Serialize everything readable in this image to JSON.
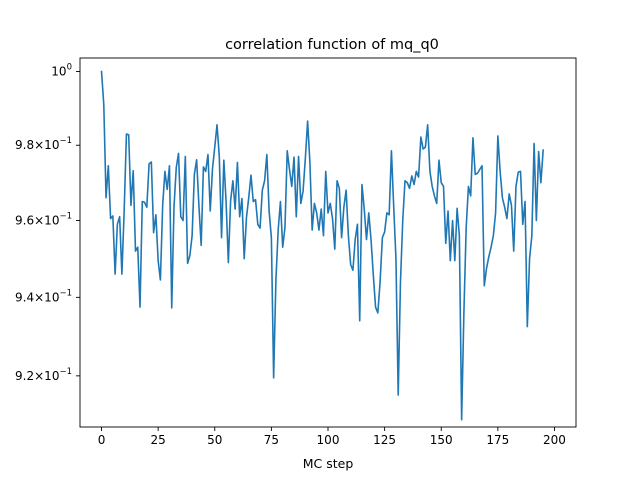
{
  "chart_data": {
    "type": "line",
    "title": "correlation function of mq_q0",
    "xlabel": "MC step",
    "ylabel": "",
    "xlim": [
      -9.5,
      209.5
    ],
    "ylim": [
      0.9072,
      1.0037
    ],
    "yscale": "log",
    "grid": false,
    "legend": "none",
    "x_ticks": [
      0,
      25,
      50,
      75,
      100,
      125,
      150,
      175,
      200
    ],
    "x_tick_labels": [
      "0",
      "25",
      "50",
      "75",
      "100",
      "125",
      "150",
      "175",
      "200"
    ],
    "y_ticks": [
      1.0,
      0.98,
      0.96,
      0.94,
      0.92
    ],
    "y_tick_labels": [
      {
        "base": "10",
        "exp": "0"
      },
      {
        "mant": "9.8",
        "base": "10",
        "exp": "−1"
      },
      {
        "mant": "9.6",
        "base": "10",
        "exp": "−1"
      },
      {
        "mant": "9.4",
        "base": "10",
        "exp": "−1"
      },
      {
        "mant": "9.2",
        "base": "10",
        "exp": "−1"
      }
    ],
    "series": [
      {
        "color": "#1f77b4",
        "x_start": 0,
        "x_step": 1,
        "values": [
          1.0,
          0.991,
          0.966,
          0.9745,
          0.9605,
          0.9612,
          0.946,
          0.959,
          0.961,
          0.946,
          0.9625,
          0.983,
          0.9828,
          0.964,
          0.9732,
          0.952,
          0.953,
          0.9375,
          0.965,
          0.9648,
          0.9635,
          0.975,
          0.9755,
          0.9568,
          0.9615,
          0.9495,
          0.9445,
          0.964,
          0.973,
          0.9682,
          0.9745,
          0.9373,
          0.9635,
          0.974,
          0.9778,
          0.961,
          0.96,
          0.977,
          0.9488,
          0.9508,
          0.956,
          0.9722,
          0.9761,
          0.964,
          0.9535,
          0.9742,
          0.973,
          0.9775,
          0.9625,
          0.9737,
          0.9795,
          0.9855,
          0.977,
          0.9555,
          0.976,
          0.965,
          0.949,
          0.9652,
          0.9705,
          0.963,
          0.9754,
          0.961,
          0.9658,
          0.95,
          0.9608,
          0.966,
          0.972,
          0.965,
          0.9655,
          0.959,
          0.958,
          0.968,
          0.9705,
          0.9775,
          0.9625,
          0.9555,
          0.9195,
          0.9445,
          0.9575,
          0.965,
          0.953,
          0.9582,
          0.9785,
          0.9735,
          0.969,
          0.9768,
          0.961,
          0.977,
          0.9645,
          0.9678,
          0.9765,
          0.9865,
          0.9755,
          0.9575,
          0.9645,
          0.962,
          0.9575,
          0.963,
          0.956,
          0.973,
          0.962,
          0.9645,
          0.9605,
          0.9525,
          0.9705,
          0.9685,
          0.9555,
          0.9635,
          0.968,
          0.956,
          0.9485,
          0.947,
          0.955,
          0.959,
          0.934,
          0.9695,
          0.963,
          0.955,
          0.962,
          0.955,
          0.9458,
          0.9375,
          0.936,
          0.944,
          0.9555,
          0.957,
          0.962,
          0.9615,
          0.9785,
          0.9638,
          0.95,
          0.9152,
          0.944,
          0.96,
          0.9705,
          0.97,
          0.9685,
          0.9718,
          0.9695,
          0.973,
          0.9715,
          0.9822,
          0.979,
          0.9795,
          0.9855,
          0.973,
          0.969,
          0.9665,
          0.9645,
          0.976,
          0.97,
          0.969,
          0.954,
          0.9625,
          0.9495,
          0.96,
          0.9495,
          0.9632,
          0.956,
          0.909,
          0.936,
          0.958,
          0.969,
          0.9665,
          0.982,
          0.9722,
          0.9725,
          0.9735,
          0.9745,
          0.943,
          0.9475,
          0.9505,
          0.953,
          0.956,
          0.962,
          0.9825,
          0.973,
          0.966,
          0.9635,
          0.9605,
          0.967,
          0.964,
          0.952,
          0.969,
          0.9728,
          0.973,
          0.959,
          0.965,
          0.9325,
          0.95,
          0.956,
          0.9805,
          0.96,
          0.9783,
          0.97,
          0.9787
        ]
      }
    ]
  }
}
